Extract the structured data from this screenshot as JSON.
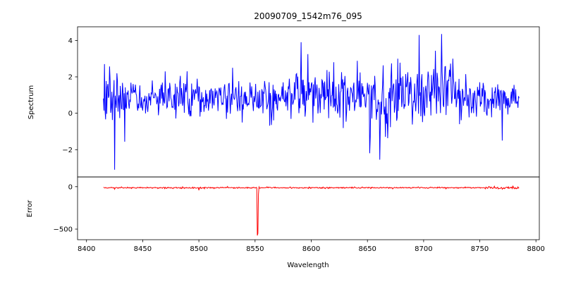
{
  "figure": {
    "title": "20090709_1542m76_095",
    "xlabel": "Wavelength"
  },
  "chart_data": {
    "type": "line",
    "title": "20090709_1542m76_095",
    "xlabel": "Wavelength",
    "grid": false,
    "legend": null,
    "xlim": [
      8392,
      8803
    ],
    "x_ticks": [
      8400,
      8450,
      8500,
      8550,
      8600,
      8650,
      8700,
      8750,
      8800
    ],
    "subplots": [
      {
        "name": "spectrum",
        "ylabel": "Spectrum",
        "ylim": [
          -3.5,
          4.75
        ],
        "y_ticks": [
          -2,
          0,
          2,
          4
        ],
        "line_color": "#0000ff",
        "x_start": 8415,
        "x_end": 8785,
        "x_step": 0.5,
        "seed": 20090709,
        "baseline_mean": 0.9,
        "segments": [
          {
            "x0": 8415,
            "x1": 8435,
            "mean": 0.9,
            "std": 0.75
          },
          {
            "x0": 8435,
            "x1": 8575,
            "mean": 0.85,
            "std": 0.5
          },
          {
            "x0": 8575,
            "x1": 8645,
            "mean": 1.0,
            "std": 0.7
          },
          {
            "x0": 8645,
            "x1": 8685,
            "mean": 0.7,
            "std": 1.0
          },
          {
            "x0": 8685,
            "x1": 8735,
            "mean": 1.15,
            "std": 0.85
          },
          {
            "x0": 8735,
            "x1": 8785,
            "mean": 0.75,
            "std": 0.5
          }
        ],
        "spikes": [
          {
            "x": 8416,
            "y": 2.7
          },
          {
            "x": 8425,
            "y": -3.1
          },
          {
            "x": 8470,
            "y": 2.3
          },
          {
            "x": 8530,
            "y": 2.5
          },
          {
            "x": 8591,
            "y": 3.9
          },
          {
            "x": 8620,
            "y": 2.8
          },
          {
            "x": 8652,
            "y": -2.2
          },
          {
            "x": 8661,
            "y": -2.55
          },
          {
            "x": 8677,
            "y": 3.0
          },
          {
            "x": 8696,
            "y": 4.3
          },
          {
            "x": 8716,
            "y": 4.35
          },
          {
            "x": 8726,
            "y": 3.0
          },
          {
            "x": 8770,
            "y": -1.5
          }
        ]
      },
      {
        "name": "error",
        "ylabel": "Error",
        "ylim": [
          -625,
          115
        ],
        "y_ticks": [
          -500,
          0
        ],
        "line_color": "#ff0000",
        "x_start": 8415,
        "x_end": 8785,
        "x_step": 0.5,
        "seed": 1542,
        "baseline_mean": -12,
        "segments": [
          {
            "x0": 8415,
            "x1": 8755,
            "mean": -12,
            "std": 4
          },
          {
            "x0": 8755,
            "x1": 8785,
            "mean": -12,
            "std": 10
          }
        ],
        "spikes": [
          {
            "x": 8425,
            "y": -30
          },
          {
            "x": 8433,
            "y": -18
          },
          {
            "x": 8500,
            "y": -42
          },
          {
            "x": 8552,
            "y": -575
          },
          {
            "x": 8552.5,
            "y": -550
          },
          {
            "x": 8553,
            "y": -90
          },
          {
            "x": 8720,
            "y": -25
          },
          {
            "x": 8770,
            "y": -30
          }
        ]
      }
    ]
  }
}
